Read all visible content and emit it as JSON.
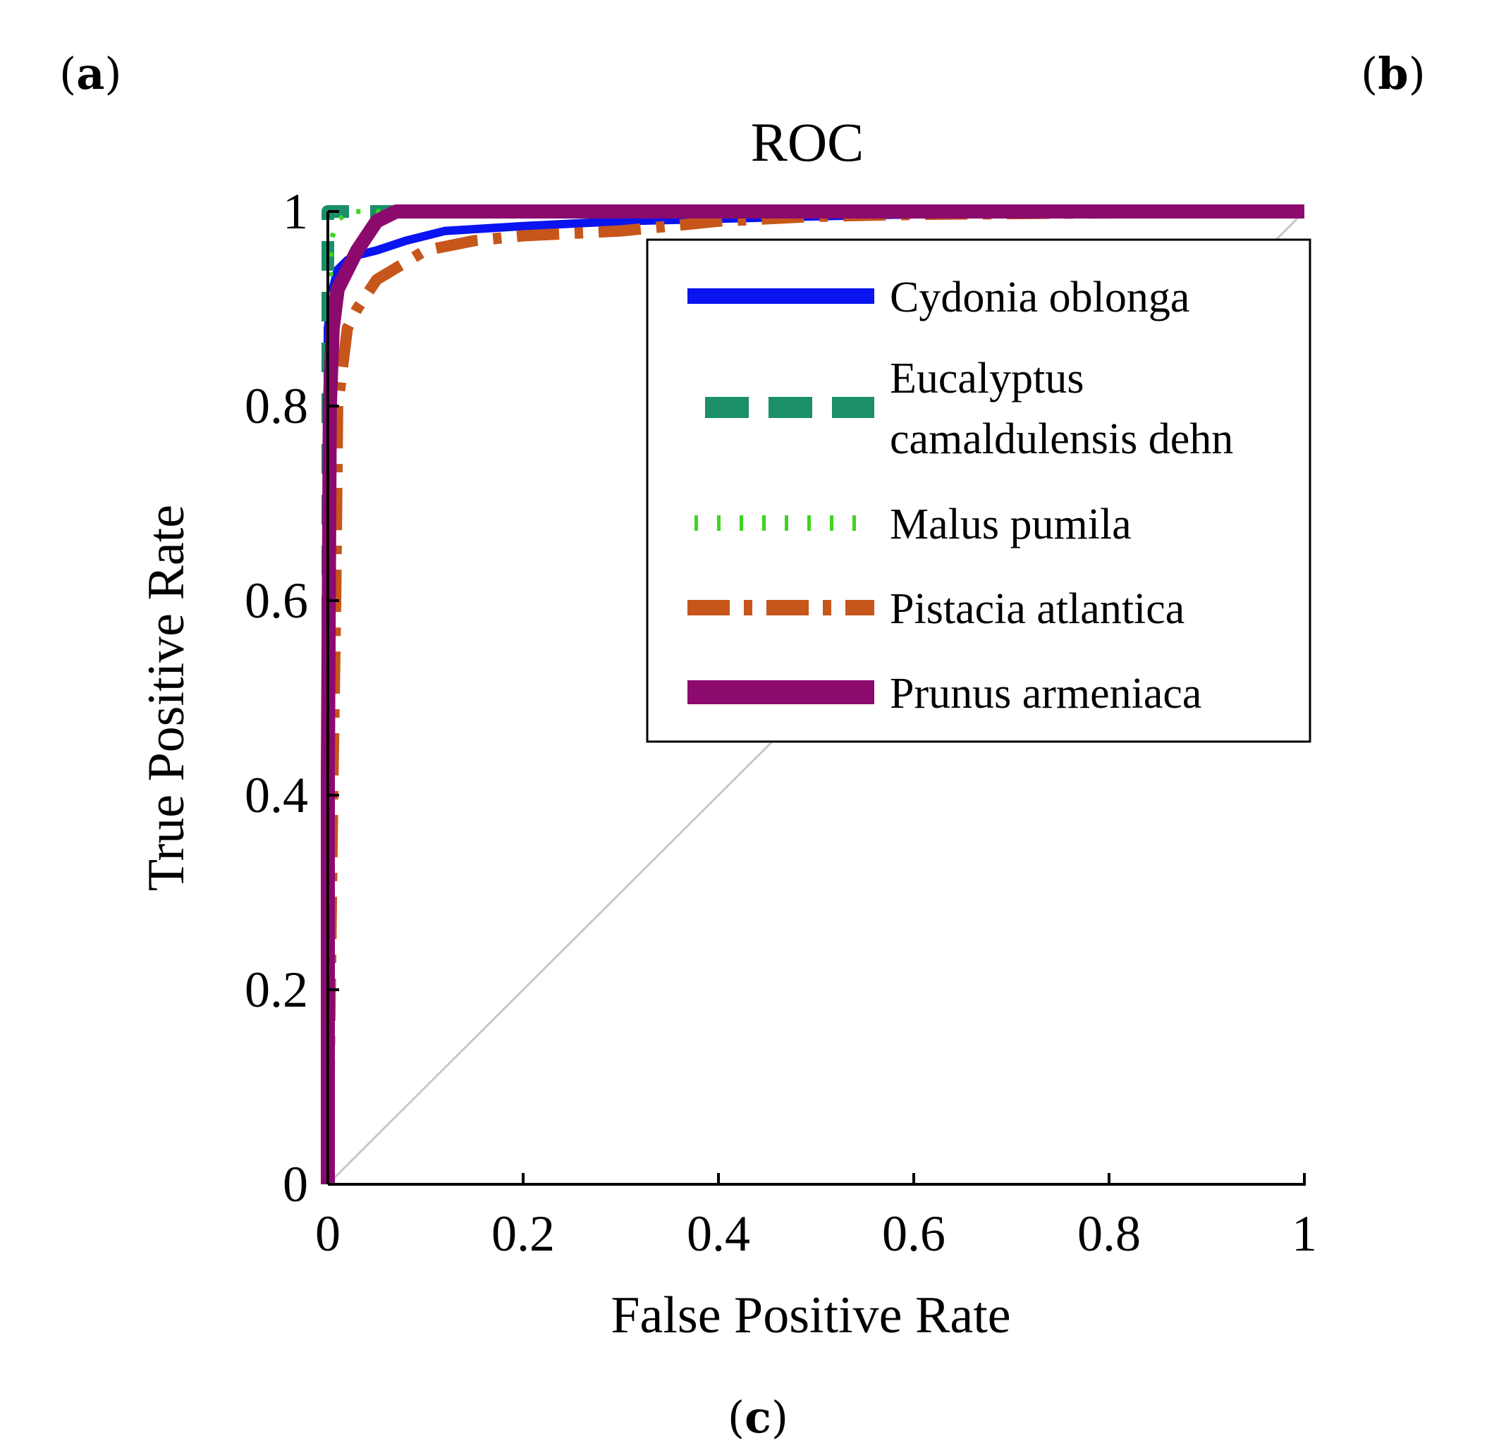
{
  "panel_labels": {
    "a": {
      "open": "(",
      "letter": "a",
      "close": ")"
    },
    "b": {
      "open": "(",
      "letter": "b",
      "close": ")"
    },
    "c": {
      "open": "(",
      "letter": "c",
      "close": ")"
    }
  },
  "chart_data": {
    "type": "line",
    "title": "ROC",
    "xlabel": "False Positive Rate",
    "ylabel": "True Positive Rate",
    "xlim": [
      0,
      1
    ],
    "ylim": [
      0,
      1
    ],
    "xticks": [
      0,
      0.2,
      0.4,
      0.6,
      0.8,
      1
    ],
    "yticks": [
      0,
      0.2,
      0.4,
      0.6,
      0.8,
      1
    ],
    "xtick_labels": [
      "0",
      "0.2",
      "0.4",
      "0.6",
      "0.8",
      "1"
    ],
    "ytick_labels": [
      "0",
      "0.2",
      "0.4",
      "0.6",
      "0.8",
      "1"
    ],
    "legend_position": "upper-right",
    "diagonal": {
      "x": [
        0,
        1
      ],
      "y": [
        0,
        1
      ],
      "color": "#c8c8c8"
    },
    "series": [
      {
        "name": "Cydonia oblonga",
        "legend_lines": [
          "Cydonia oblonga"
        ],
        "color": "#0a14f0",
        "style": "solid",
        "x": [
          0,
          0,
          0.005,
          0.01,
          0.02,
          0.03,
          0.05,
          0.08,
          0.12,
          0.2,
          0.3,
          0.5,
          0.74,
          1
        ],
        "y": [
          0,
          0.88,
          0.92,
          0.94,
          0.95,
          0.955,
          0.96,
          0.97,
          0.98,
          0.985,
          0.99,
          0.995,
          1,
          1
        ]
      },
      {
        "name": "Eucalyptus camaldulensis dehn",
        "legend_lines": [
          "Eucalyptus",
          "camaldulensis dehn"
        ],
        "color": "#1a8f6a",
        "style": "dashed",
        "x": [
          0,
          0,
          0,
          0.005,
          0.01,
          0.02,
          0.05,
          1
        ],
        "y": [
          0,
          0.9,
          1,
          1,
          1,
          1,
          1,
          1
        ]
      },
      {
        "name": "Malus pumila",
        "legend_lines": [
          "Malus pumila"
        ],
        "color": "#3fd421",
        "style": "dotted",
        "x": [
          0,
          0,
          0.003,
          0.01,
          0.02,
          0.04,
          1
        ],
        "y": [
          0,
          0.42,
          0.97,
          0.99,
          1,
          1,
          1
        ]
      },
      {
        "name": "Pistacia atlantica",
        "legend_lines": [
          "Pistacia atlantica"
        ],
        "color": "#c7561a",
        "style": "dashdot",
        "x": [
          0,
          0.005,
          0.008,
          0.01,
          0.02,
          0.03,
          0.05,
          0.1,
          0.15,
          0.2,
          0.3,
          0.4,
          0.5,
          0.6,
          1
        ],
        "y": [
          0,
          0.4,
          0.6,
          0.8,
          0.88,
          0.9,
          0.93,
          0.96,
          0.97,
          0.975,
          0.98,
          0.99,
          0.995,
          0.997,
          1
        ]
      },
      {
        "name": "Prunus armeniaca",
        "legend_lines": [
          "Prunus armeniaca"
        ],
        "color": "#8c0a6e",
        "style": "solid-thick",
        "x": [
          0,
          0,
          0.002,
          0.005,
          0.01,
          0.02,
          0.03,
          0.04,
          0.05,
          0.07,
          0.1,
          1
        ],
        "y": [
          0,
          0.42,
          0.8,
          0.88,
          0.92,
          0.94,
          0.96,
          0.975,
          0.99,
          1,
          1,
          1
        ]
      }
    ]
  }
}
